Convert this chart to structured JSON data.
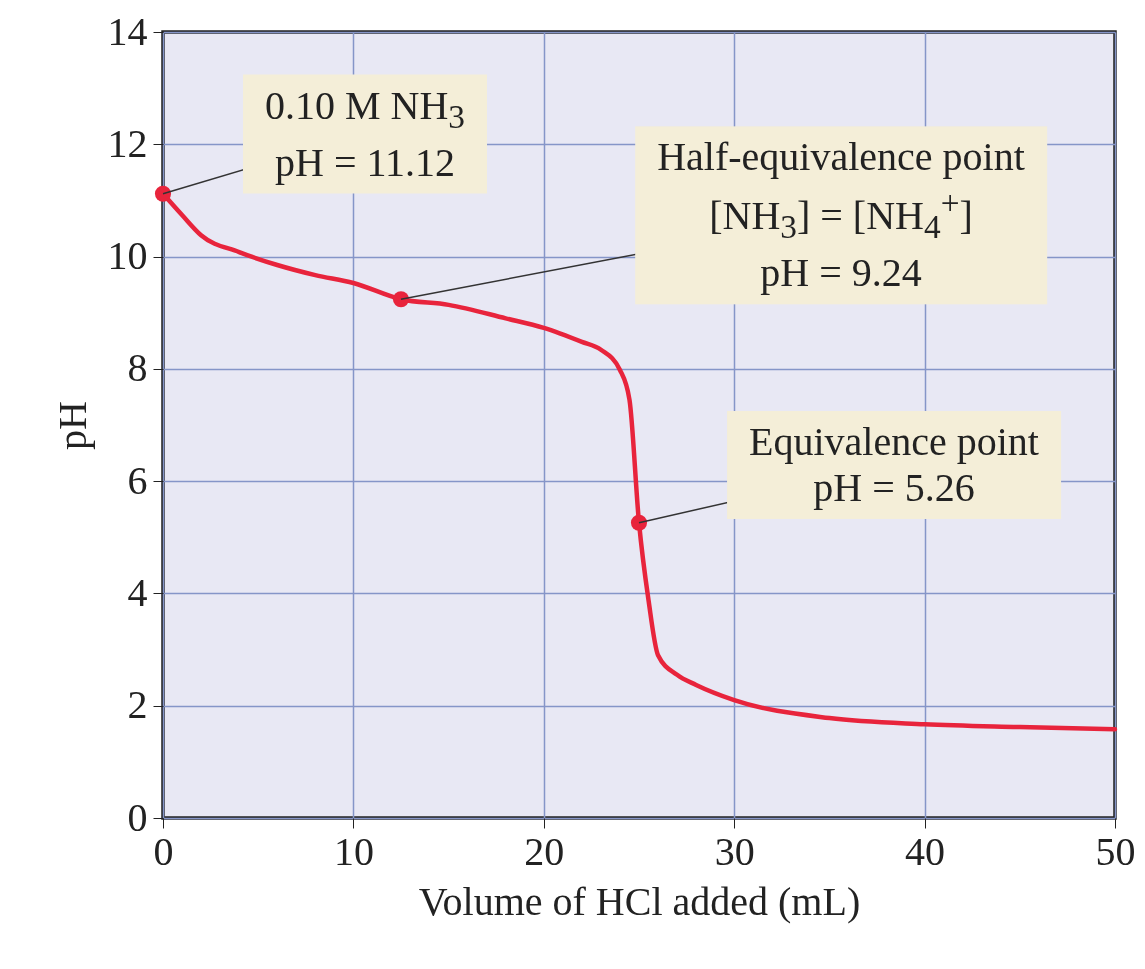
{
  "chart_data": {
    "type": "line",
    "xlabel": "Volume of HCl added (mL)",
    "ylabel": "pH",
    "xlim": [
      0,
      50
    ],
    "ylim": [
      0,
      14
    ],
    "xticks": [
      0,
      10,
      20,
      30,
      40,
      50
    ],
    "yticks": [
      0,
      2,
      4,
      6,
      8,
      10,
      12,
      14
    ],
    "grid": true,
    "series": [
      {
        "color": "#e8243c",
        "line_style": "solid",
        "x": [
          0,
          1,
          2,
          4,
          6,
          8,
          10,
          12.5,
          15,
          18,
          20,
          22,
          23,
          24,
          24.5,
          25,
          25.5,
          26,
          27,
          28,
          30,
          35,
          40,
          45,
          50
        ],
        "values": [
          11.12,
          10.74,
          10.38,
          10.08,
          9.85,
          9.67,
          9.53,
          9.24,
          9.14,
          8.9,
          8.73,
          8.48,
          8.34,
          7.98,
          7.45,
          5.26,
          3.88,
          2.9,
          2.55,
          2.37,
          2.1,
          1.78,
          1.67,
          1.62,
          1.58
        ]
      },
      {
        "type": "scatter",
        "color": "#e8243c",
        "marker": "circle",
        "x": [
          0,
          12.5,
          25
        ],
        "values": [
          11.12,
          9.24,
          5.26
        ]
      }
    ],
    "annotations": [
      {
        "text": "0.10 M NH$_{3}$\npH = 11.12",
        "x": 0,
        "y": 11.12
      },
      {
        "text": "Half-equivalence point\n[NH$_{3}$] = [NH$_{4}$$^{+}$]\npH = 9.24",
        "x": 12.5,
        "y": 9.24
      },
      {
        "text": "Equivalence point\npH = 5.26",
        "x": 25,
        "y": 5.26
      }
    ]
  }
}
